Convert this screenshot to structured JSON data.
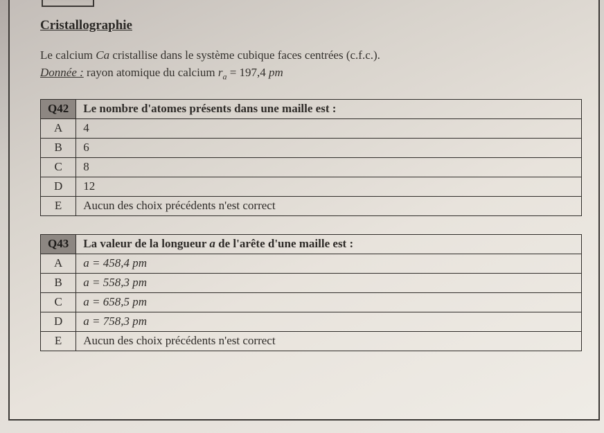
{
  "section": {
    "title": "Cristallographie"
  },
  "intro": {
    "line1_prefix": "Le calcium ",
    "element_symbol": "Ca",
    "line1_mid": " cristallise dans le système cubique faces centrées (c.f.c.).",
    "given_label": "Donnée :",
    "given_text": " rayon atomique du calcium  ",
    "radius_symbol": "r",
    "radius_subscript": "a",
    "radius_equals": " = 197,4 ",
    "radius_unit": "pm"
  },
  "q42": {
    "number": "Q42",
    "text": "Le nombre d'atomes présents dans une maille est :",
    "options": {
      "A": "4",
      "B": "6",
      "C": "8",
      "D": "12",
      "E": "Aucun des choix précédents n'est correct"
    }
  },
  "q43": {
    "number": "Q43",
    "text_prefix": "La valeur de la longueur ",
    "text_var": "a",
    "text_suffix": " de l'arête d'une maille est :",
    "options": {
      "A": "a = 458,4 pm",
      "B": "a = 558,3 pm",
      "C": "a = 658,5 pm",
      "D": "a = 758,3 pm",
      "E": "Aucun des choix précédents n'est correct"
    }
  },
  "letters": {
    "A": "A",
    "B": "B",
    "C": "C",
    "D": "D",
    "E": "E"
  }
}
